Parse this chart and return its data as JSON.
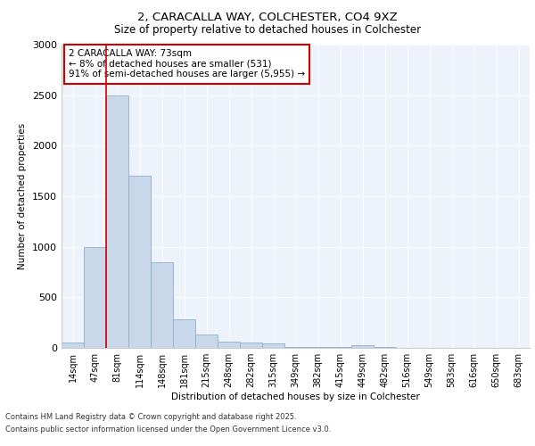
{
  "title_line1": "2, CARACALLA WAY, COLCHESTER, CO4 9XZ",
  "title_line2": "Size of property relative to detached houses in Colchester",
  "xlabel": "Distribution of detached houses by size in Colchester",
  "ylabel": "Number of detached properties",
  "footer_line1": "Contains HM Land Registry data © Crown copyright and database right 2025.",
  "footer_line2": "Contains public sector information licensed under the Open Government Licence v3.0.",
  "annotation_line1": "2 CARACALLA WAY: 73sqm",
  "annotation_line2": "← 8% of detached houses are smaller (531)",
  "annotation_line3": "91% of semi-detached houses are larger (5,955) →",
  "bar_categories": [
    "14sqm",
    "47sqm",
    "81sqm",
    "114sqm",
    "148sqm",
    "181sqm",
    "215sqm",
    "248sqm",
    "282sqm",
    "315sqm",
    "349sqm",
    "382sqm",
    "415sqm",
    "449sqm",
    "482sqm",
    "516sqm",
    "549sqm",
    "583sqm",
    "616sqm",
    "650sqm",
    "683sqm"
  ],
  "bar_values": [
    50,
    1000,
    2500,
    1700,
    850,
    280,
    130,
    60,
    50,
    40,
    10,
    5,
    5,
    30,
    5,
    0,
    0,
    0,
    0,
    0,
    0
  ],
  "bar_color": "#c8d8ea",
  "bar_edgecolor": "#8ab0cc",
  "vline_color": "#cc0000",
  "vline_x_index": 1.5,
  "ylim": [
    0,
    3000
  ],
  "yticks": [
    0,
    500,
    1000,
    1500,
    2000,
    2500,
    3000
  ],
  "bg_color": "#eef2fa",
  "annotation_box_edgecolor": "#cc0000",
  "grid_color": "#ffffff"
}
